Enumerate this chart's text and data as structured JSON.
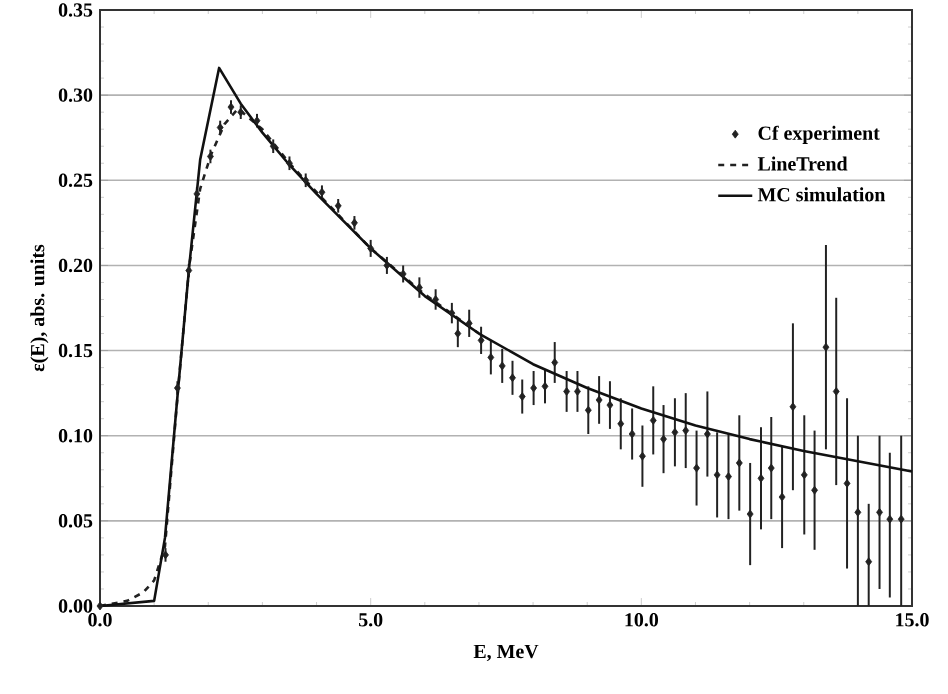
{
  "chart_data": {
    "type": "line",
    "xlabel": "E, MeV",
    "ylabel": "ε(E), abs. units",
    "xlim": [
      0,
      15
    ],
    "ylim": [
      0,
      0.35
    ],
    "xticks": [
      {
        "value": 0,
        "label": "0.0"
      },
      {
        "value": 5,
        "label": "5.0"
      },
      {
        "value": 10,
        "label": "10.0"
      },
      {
        "value": 15,
        "label": "15.0"
      }
    ],
    "yticks": [
      {
        "value": 0,
        "label": "0.00"
      },
      {
        "value": 0.05,
        "label": "0.05"
      },
      {
        "value": 0.1,
        "label": "0.10"
      },
      {
        "value": 0.15,
        "label": "0.15"
      },
      {
        "value": 0.2,
        "label": "0.20"
      },
      {
        "value": 0.25,
        "label": "0.25"
      },
      {
        "value": 0.3,
        "label": "0.30"
      },
      {
        "value": 0.35,
        "label": "0.35"
      }
    ],
    "grid": "y",
    "legend": "top right",
    "series": [
      {
        "name": "Cf experiment",
        "type": "scatter",
        "marker": "diamond",
        "color": "#222222",
        "x": [
          0,
          1.21,
          1.43,
          1.64,
          1.79,
          2.04,
          2.22,
          2.42,
          2.6,
          2.9,
          3.2,
          3.5,
          3.8,
          4.1,
          4.4,
          4.7,
          5.0,
          5.3,
          5.6,
          5.9,
          6.2,
          6.5,
          6.61,
          6.82,
          7.04,
          7.22,
          7.43,
          7.62,
          7.8,
          8.01,
          8.22,
          8.4,
          8.62,
          8.82,
          9.02,
          9.22,
          9.42,
          9.62,
          9.83,
          10.02,
          10.22,
          10.41,
          10.62,
          10.82,
          11.02,
          11.22,
          11.4,
          11.61,
          11.81,
          12.01,
          12.21,
          12.4,
          12.6,
          12.8,
          13.01,
          13.2,
          13.41,
          13.6,
          13.8,
          14.0,
          14.2,
          14.4,
          14.59,
          14.8
        ],
        "values": [
          0,
          0.03,
          0.128,
          0.197,
          0.242,
          0.264,
          0.281,
          0.293,
          0.29,
          0.285,
          0.27,
          0.26,
          0.25,
          0.243,
          0.235,
          0.225,
          0.21,
          0.2,
          0.195,
          0.187,
          0.18,
          0.172,
          0.16,
          0.166,
          0.156,
          0.146,
          0.141,
          0.134,
          0.123,
          0.128,
          0.129,
          0.143,
          0.126,
          0.126,
          0.115,
          0.121,
          0.118,
          0.107,
          0.101,
          0.088,
          0.109,
          0.098,
          0.102,
          0.103,
          0.081,
          0.101,
          0.077,
          0.076,
          0.084,
          0.054,
          0.075,
          0.081,
          0.064,
          0.117,
          0.077,
          0.068,
          0.152,
          0.126,
          0.072,
          0.055,
          0.026,
          0.055,
          0.051,
          0.051
        ],
        "errors": [
          null,
          0.004,
          0.004,
          0.004,
          0.004,
          0.004,
          0.004,
          0.004,
          0.004,
          0.004,
          0.004,
          0.004,
          0.004,
          0.004,
          0.004,
          0.004,
          0.005,
          0.005,
          0.005,
          0.006,
          0.006,
          0.006,
          0.008,
          0.008,
          0.008,
          0.01,
          0.01,
          0.01,
          0.01,
          0.01,
          0.01,
          0.012,
          0.012,
          0.012,
          0.014,
          0.014,
          0.014,
          0.015,
          0.015,
          0.018,
          0.02,
          0.02,
          0.02,
          0.022,
          0.022,
          0.025,
          0.025,
          0.025,
          0.028,
          0.03,
          0.03,
          0.03,
          0.03,
          0.049,
          0.035,
          0.035,
          0.06,
          0.055,
          0.05,
          [
            0,
            0.1
          ],
          [
            0,
            0.06
          ],
          [
            0.01,
            0.1
          ],
          [
            0.005,
            0.09
          ],
          [
            0,
            0.1
          ]
        ]
      },
      {
        "name": "LineTrend",
        "line_style": "dashed",
        "color": "#222222",
        "x": [
          0,
          0.5,
          0.8,
          1.0,
          1.2,
          1.45,
          1.65,
          1.85,
          2.05,
          2.3,
          2.55,
          3.0,
          3.5,
          4.0,
          5.0,
          6.0,
          7.0
        ],
        "values": [
          0,
          0.003,
          0.008,
          0.015,
          0.035,
          0.13,
          0.2,
          0.245,
          0.265,
          0.283,
          0.292,
          0.28,
          0.26,
          0.243,
          0.21,
          0.183,
          0.16
        ]
      },
      {
        "name": "MC simulation",
        "line_style": "solid",
        "color": "#111111",
        "x": [
          0,
          1.0,
          1.2,
          1.45,
          1.65,
          1.85,
          2.2,
          2.6,
          3.0,
          3.5,
          4.0,
          5.0,
          6.0,
          7.0,
          8.0,
          9.0,
          10.0,
          11.0,
          12.0,
          13.0,
          14.0,
          15.0
        ],
        "values": [
          0,
          0.003,
          0.04,
          0.13,
          0.2,
          0.262,
          0.316,
          0.295,
          0.278,
          0.259,
          0.242,
          0.21,
          0.182,
          0.16,
          0.142,
          0.128,
          0.116,
          0.106,
          0.098,
          0.091,
          0.085,
          0.079
        ]
      }
    ]
  }
}
